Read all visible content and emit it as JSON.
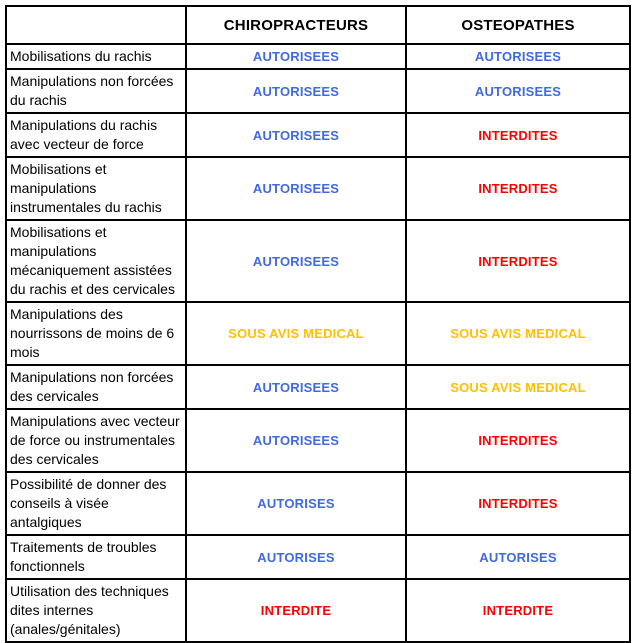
{
  "table": {
    "columns": {
      "corner": "",
      "chiropracteurs": "CHIROPRACTEURS",
      "osteopathes": "OSTEOPATHES"
    },
    "colors": {
      "authorized": "#4169E1",
      "forbidden": "#FF0000",
      "medical_advice": "#FFC000"
    },
    "rows": [
      {
        "label": "Mobilisations du rachis",
        "chiropracteurs": {
          "text": "AUTORISEES",
          "status": "authorized"
        },
        "osteopathes": {
          "text": "AUTORISEES",
          "status": "authorized"
        }
      },
      {
        "label": "Manipulations non forcées du rachis",
        "chiropracteurs": {
          "text": "AUTORISEES",
          "status": "authorized"
        },
        "osteopathes": {
          "text": "AUTORISEES",
          "status": "authorized"
        }
      },
      {
        "label": "Manipulations du rachis avec vecteur de force",
        "chiropracteurs": {
          "text": "AUTORISEES",
          "status": "authorized"
        },
        "osteopathes": {
          "text": "INTERDITES",
          "status": "forbidden"
        }
      },
      {
        "label": "Mobilisations et manipulations instrumentales du rachis",
        "chiropracteurs": {
          "text": "AUTORISEES",
          "status": "authorized"
        },
        "osteopathes": {
          "text": "INTERDITES",
          "status": "forbidden"
        }
      },
      {
        "label": "Mobilisations et manipulations mécaniquement assistées du rachis et des cervicales",
        "chiropracteurs": {
          "text": "AUTORISEES",
          "status": "authorized"
        },
        "osteopathes": {
          "text": "INTERDITES",
          "status": "forbidden"
        }
      },
      {
        "label": "Manipulations des nourrissons de moins de 6 mois",
        "chiropracteurs": {
          "text": "SOUS AVIS MEDICAL",
          "status": "medical_advice"
        },
        "osteopathes": {
          "text": "SOUS AVIS MEDICAL",
          "status": "medical_advice"
        }
      },
      {
        "label": "Manipulations non forcées des cervicales",
        "chiropracteurs": {
          "text": "AUTORISEES",
          "status": "authorized"
        },
        "osteopathes": {
          "text": "SOUS AVIS MEDICAL",
          "status": "medical_advice"
        }
      },
      {
        "label": "Manipulations avec vecteur de force ou instrumentales des cervicales",
        "chiropracteurs": {
          "text": "AUTORISEES",
          "status": "authorized"
        },
        "osteopathes": {
          "text": "INTERDITES",
          "status": "forbidden"
        }
      },
      {
        "label": "Possibilité de donner des conseils à visée antalgiques",
        "chiropracteurs": {
          "text": "AUTORISES",
          "status": "authorized"
        },
        "osteopathes": {
          "text": "INTERDITES",
          "status": "forbidden"
        }
      },
      {
        "label": "Traitements de troubles fonctionnels",
        "chiropracteurs": {
          "text": "AUTORISES",
          "status": "authorized"
        },
        "osteopathes": {
          "text": "AUTORISES",
          "status": "authorized"
        }
      },
      {
        "label": "Utilisation des techniques dites internes (anales/génitales)",
        "chiropracteurs": {
          "text": "INTERDITE",
          "status": "forbidden"
        },
        "osteopathes": {
          "text": "INTERDITE",
          "status": "forbidden"
        }
      }
    ]
  }
}
